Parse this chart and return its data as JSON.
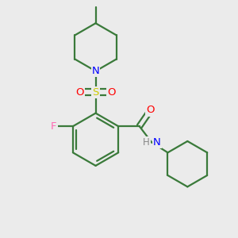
{
  "background_color": "#ebebeb",
  "bond_color": "#3a7a3a",
  "atom_colors": {
    "N": "#0000ff",
    "O": "#ff0000",
    "S": "#cccc00",
    "F": "#ff69b4",
    "H": "#888888",
    "C": "#3a7a3a"
  },
  "figsize": [
    3.0,
    3.0
  ],
  "dpi": 100
}
